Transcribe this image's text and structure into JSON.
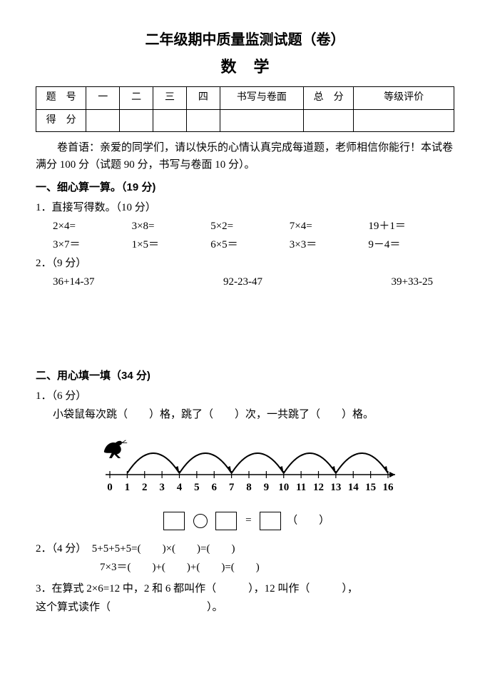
{
  "title": "二年级期中质量监测试题（卷）",
  "subject": "数学",
  "table": {
    "r1": [
      "题　号",
      "一",
      "二",
      "三",
      "四",
      "书写与卷面",
      "总　分",
      "等级评价"
    ],
    "r2_label": "得　分"
  },
  "preface": "卷首语：亲爱的同学们，请以快乐的心情认真完成每道题，老师相信你能行！本试卷满分 100 分（试题 90 分，书写与卷面 10 分）。",
  "s1": {
    "heading": "一、细心算一算。（19 分)",
    "q1_label": "1．直接写得数。（10 分）",
    "row1": [
      "2×4=",
      "3×8=",
      "5×2=",
      "7×4=",
      "19＋1＝"
    ],
    "row2": [
      "3×7＝",
      "1×5＝",
      "6×5＝",
      "3×3＝",
      "9－4＝"
    ],
    "q2_label": "2．（9 分）",
    "row3": [
      "36+14-37",
      "92-23-47",
      "39+33-25"
    ]
  },
  "s2": {
    "heading": "二、用心填一填（34 分)",
    "q1_label": "1．（6 分）",
    "q1_text": "小袋鼠每次跳（　　）格，跳了（　　）次，一共跳了（　　）格。",
    "numline": {
      "min": 0,
      "max": 16,
      "jump_starts": [
        1,
        4,
        7,
        10,
        13
      ],
      "jump_len": 3,
      "labels": [
        "0",
        "1",
        "2",
        "3",
        "4",
        "5",
        "6",
        "7",
        "8",
        "9",
        "10",
        "11",
        "12",
        "13",
        "14",
        "15",
        "16"
      ],
      "stroke": "#000",
      "arc_width": 2
    },
    "eq_tail": "（　　）",
    "eq_equals": "=",
    "q2_label": "2．（4 分）",
    "q2_line1": "5+5+5+5=(　　)×(　　)=(　　)",
    "q2_line2": "7×3＝(　　)+(　　)+(　　)=(　　)",
    "q3_line1": "3．在算式 2×6=12 中，2 和 6 都叫作（　　　），12 叫作（　　　），",
    "q3_line2": "这个算式读作（　　　　　　　　　）。"
  }
}
